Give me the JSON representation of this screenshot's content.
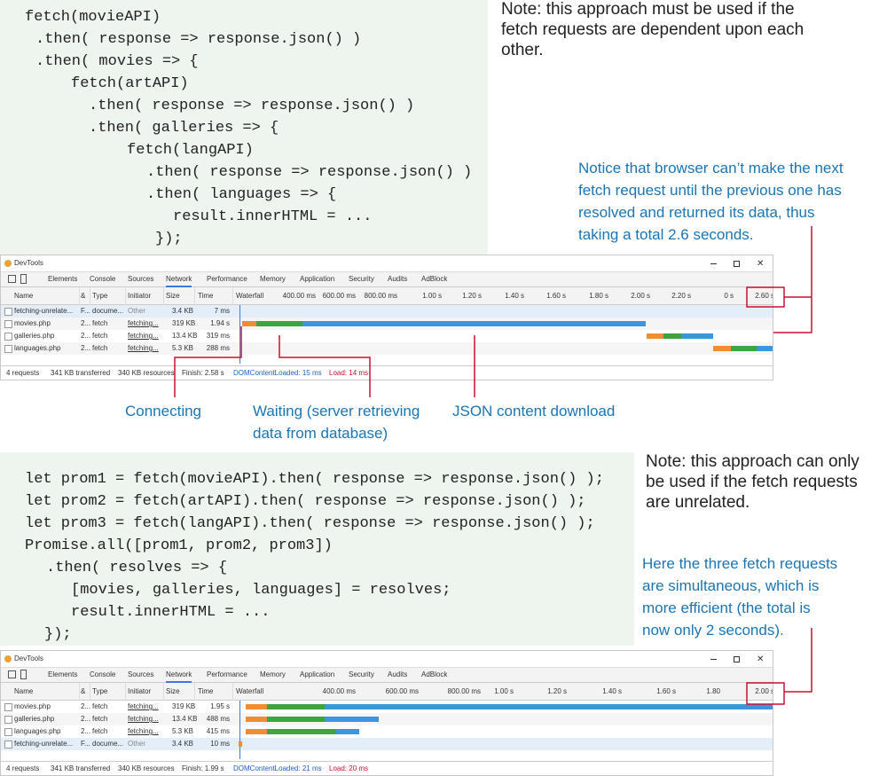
{
  "code1": {
    "lines": [
      "fetch(movieAPI)",
      ".then( response => response.json() )",
      ".then( movies => {",
      "fetch(artAPI)",
      ".then( response => response.json() )",
      ".then( galleries => {",
      "fetch(langAPI)",
      ".then( response => response.json() )",
      ".then( languages => {",
      "result.innerHTML = ...",
      "});"
    ]
  },
  "note1": {
    "lines": [
      "Note: this approach must be used if the",
      "fetch requests are dependent upon each",
      "other."
    ]
  },
  "notice1": {
    "lines": [
      "Notice that browser can’t make the next",
      "fetch request until the previous one has",
      "resolved and returned its data, thus",
      "taking a total 2.6 seconds."
    ]
  },
  "devtools1": {
    "title": "DevTools",
    "tabs": [
      "Elements",
      "Console",
      "Sources",
      "Network",
      "Performance",
      "Memory",
      "Application",
      "Security",
      "Audits",
      "AdBlock"
    ],
    "columns": [
      "Name",
      "&",
      "Type",
      "Initiator",
      "Size",
      "Time",
      "Waterfall"
    ],
    "ticks": [
      "400.00 ms",
      "600.00 ms",
      "800.00 ms",
      "1.00 s",
      "1.20 s",
      "1.40 s",
      "1.60 s",
      "1.80 s",
      "2.00 s",
      "2.20 s",
      "0 s",
      "2.60 s"
    ],
    "rows": [
      [
        "fetching-unrelate...",
        "F...",
        "docume...",
        "Other",
        "3.4 KB",
        "7 ms"
      ],
      [
        "movies.php",
        "2...",
        "fetch",
        "fetching...",
        "319 KB",
        "1.94 s"
      ],
      [
        "galleries.php",
        "2...",
        "fetch",
        "fetching...",
        "13.4 KB",
        "319 ms"
      ],
      [
        "languages.php",
        "2...",
        "fetch",
        "fetching...",
        "5.3 KB",
        "288 ms"
      ]
    ],
    "status": [
      "4 requests",
      "341 KB transferred",
      "340 KB resources",
      "Finish: 2.58 s",
      "DOMContentLoaded: 15 ms",
      "Load: 14 ms"
    ]
  },
  "callouts": {
    "connecting": "Connecting",
    "waiting": [
      "Waiting (server retrieving",
      "data from database)"
    ],
    "json": "JSON content download"
  },
  "code2": {
    "lines": [
      "let prom1 = fetch(movieAPI).then( response => response.json() );",
      "let prom2 = fetch(artAPI).then( response => response.json() );",
      "let prom3 = fetch(langAPI).then( response => response.json() );",
      "Promise.all([prom1, prom2, prom3])",
      ".then( resolves => {",
      "[movies, galleries, languages] = resolves;",
      "result.innerHTML = ...",
      "});"
    ]
  },
  "note2": {
    "lines": [
      "Note: this approach can only",
      "be used if the fetch requests",
      "are unrelated."
    ]
  },
  "notice2": {
    "lines": [
      "Here the three fetch requests",
      "are simultaneous, which is",
      "more efficient (the total is",
      "now only 2 seconds)."
    ]
  },
  "devtools2": {
    "title": "DevTools",
    "tabs": [
      "Elements",
      "Console",
      "Sources",
      "Network",
      "Performance",
      "Memory",
      "Application",
      "Security",
      "Audits",
      "AdBlock"
    ],
    "columns": [
      "Name",
      "&",
      "Type",
      "Initiator",
      "Size",
      "Time",
      "Waterfall"
    ],
    "ticks": [
      "400.00 ms",
      "600.00 ms",
      "800.00 ms",
      "1.00 s",
      "1.20 s",
      "1.40 s",
      "1.60 s",
      "1.80",
      "2.00 s"
    ],
    "rows": [
      [
        "movies.php",
        "2...",
        "fetch",
        "fetching...",
        "319 KB",
        "1.95 s"
      ],
      [
        "galleries.php",
        "2...",
        "fetch",
        "fetching...",
        "13.4 KB",
        "488 ms"
      ],
      [
        "languages.php",
        "2...",
        "fetch",
        "fetching...",
        "5.3 KB",
        "415 ms"
      ],
      [
        "fetching-unrelate...",
        "F...",
        "docume...",
        "Other",
        "3.4 KB",
        "10 ms"
      ]
    ],
    "status": [
      "4 requests",
      "341 KB transferred",
      "340 KB resources",
      "Finish: 1.99 s",
      "DOMContentLoaded: 21 ms",
      "Load: 20 ms"
    ]
  }
}
